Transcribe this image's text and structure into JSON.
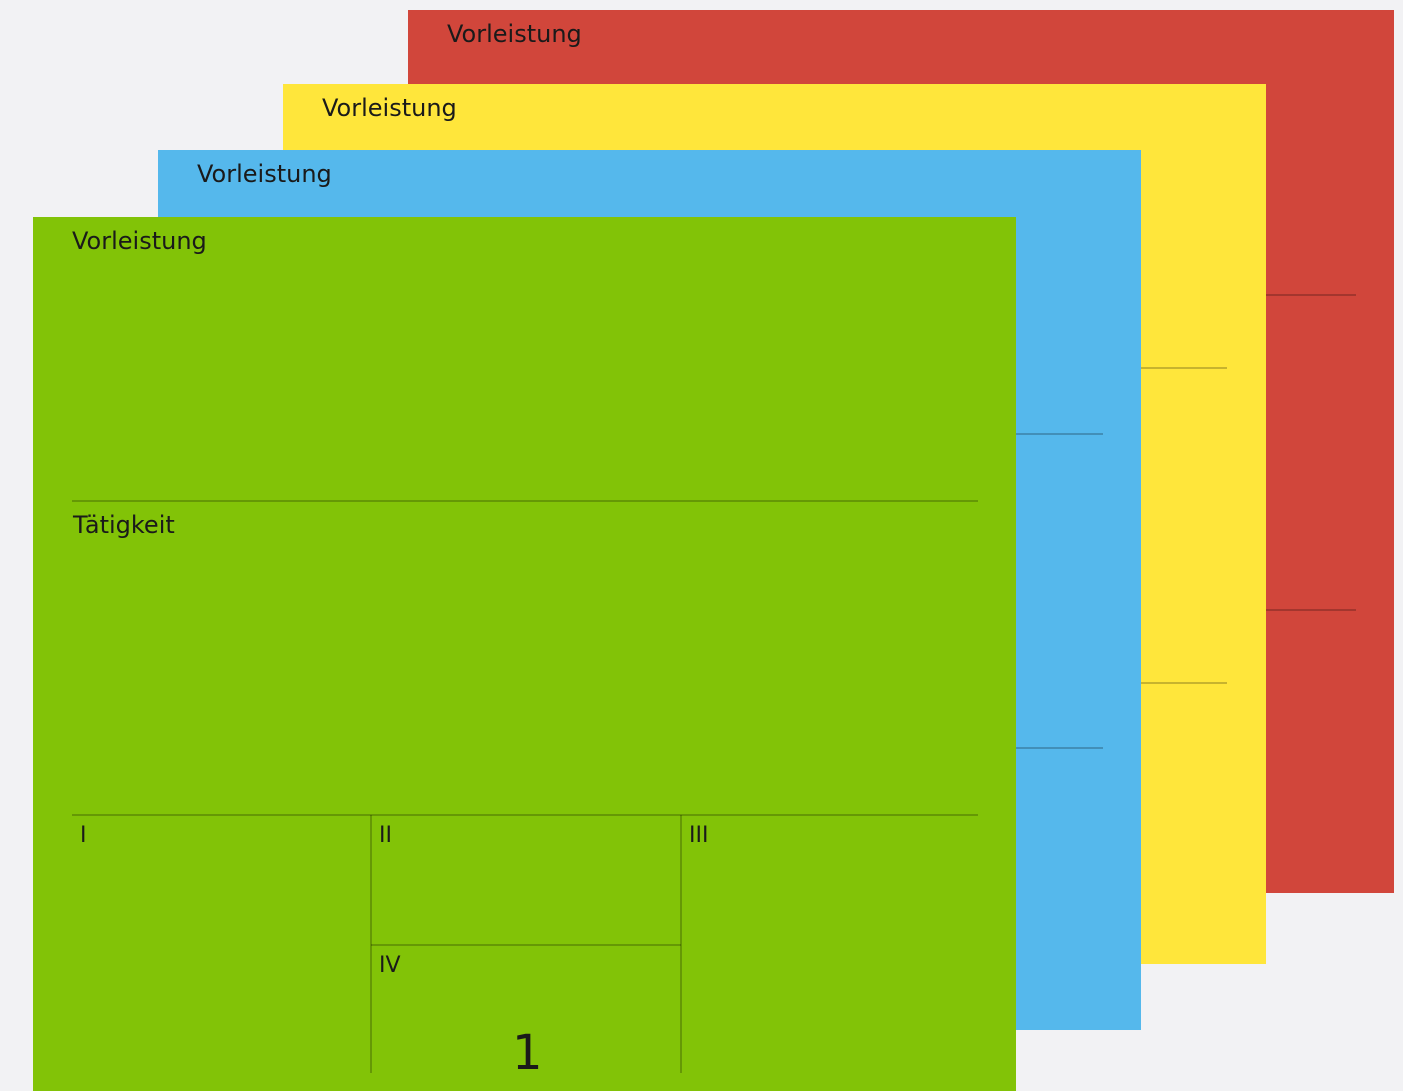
{
  "cards": [
    {
      "id": "red",
      "color": "#d1463b",
      "title": "Vorleistung"
    },
    {
      "id": "yellow",
      "color": "#ffe63b",
      "title": "Vorleistung"
    },
    {
      "id": "blue",
      "color": "#55b8ec",
      "title": "Vorleistung"
    },
    {
      "id": "green",
      "color": "#82c307",
      "title": "Vorleistung",
      "activity_label": "Tätigkeit",
      "quadrants": [
        "I",
        "II",
        "III",
        "IV"
      ],
      "number": "1"
    }
  ]
}
